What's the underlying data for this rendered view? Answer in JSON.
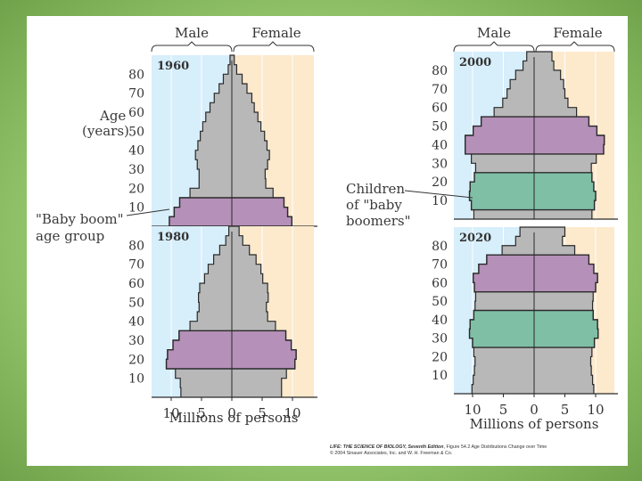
{
  "chart_data": [
    {
      "type": "bar",
      "orientation": "horizontal",
      "title": "1960",
      "age_groups": [
        "0-4",
        "5-9",
        "10-14",
        "15-19",
        "20-24",
        "25-29",
        "30-34",
        "35-39",
        "40-44",
        "45-49",
        "50-54",
        "55-59",
        "60-64",
        "65-69",
        "70-74",
        "75-79",
        "80-84",
        "85+"
      ],
      "series": [
        {
          "name": "Male",
          "values": [
            10.3,
            9.5,
            8.6,
            6.9,
            5.4,
            5.4,
            5.7,
            6.0,
            5.6,
            5.2,
            4.8,
            4.3,
            3.6,
            2.9,
            2.1,
            1.4,
            0.6,
            0.3
          ]
        },
        {
          "name": "Female",
          "values": [
            9.9,
            9.2,
            8.6,
            6.8,
            5.6,
            5.5,
            5.9,
            6.2,
            5.8,
            5.4,
            4.8,
            4.3,
            3.7,
            3.3,
            2.5,
            1.7,
            0.8,
            0.4
          ]
        }
      ],
      "highlight": {
        "label": "\"Baby boom\" age group",
        "ages": [
          0,
          14
        ]
      }
    },
    {
      "type": "bar",
      "orientation": "horizontal",
      "title": "1980",
      "age_groups": [
        "0-4",
        "5-9",
        "10-14",
        "15-19",
        "20-24",
        "25-29",
        "30-34",
        "35-39",
        "40-44",
        "45-49",
        "50-54",
        "55-59",
        "60-64",
        "65-69",
        "70-74",
        "75-79",
        "80-84",
        "85+"
      ],
      "series": [
        {
          "name": "Male",
          "values": [
            8.4,
            8.5,
            9.3,
            10.8,
            10.6,
            9.7,
            8.7,
            6.9,
            5.7,
            5.4,
            5.5,
            5.3,
            4.5,
            3.9,
            3.0,
            2.0,
            1.0,
            0.5
          ]
        },
        {
          "name": "Female",
          "values": [
            8.2,
            8.2,
            9.0,
            10.4,
            10.6,
            9.8,
            8.9,
            7.2,
            5.9,
            5.7,
            6.0,
            5.9,
            5.1,
            4.8,
            4.0,
            2.9,
            1.8,
            1.2
          ]
        }
      ],
      "highlight": {
        "label": "\"Baby boom\" age group",
        "ages": [
          15,
          34
        ]
      }
    },
    {
      "type": "bar",
      "orientation": "horizontal",
      "title": "2000",
      "age_groups": [
        "0-4",
        "5-9",
        "10-14",
        "15-19",
        "20-24",
        "25-29",
        "30-34",
        "35-39",
        "40-44",
        "45-49",
        "50-54",
        "55-59",
        "60-64",
        "65-69",
        "70-74",
        "75-79",
        "80-84",
        "85+"
      ],
      "series": [
        {
          "name": "Male",
          "values": [
            9.8,
            10.2,
            10.5,
            10.4,
            9.7,
            9.5,
            10.2,
            11.2,
            11.2,
            9.9,
            8.6,
            6.5,
            5.1,
            4.4,
            3.9,
            3.0,
            1.8,
            1.2
          ]
        },
        {
          "name": "Female",
          "values": [
            9.4,
            9.8,
            10.0,
            9.7,
            9.4,
            9.3,
            10.1,
            11.3,
            11.4,
            10.2,
            8.9,
            6.9,
            5.5,
            5.0,
            4.8,
            4.3,
            3.2,
            2.9
          ]
        }
      ],
      "highlight": [
        {
          "label": "Children of \"baby boomers\"",
          "ages": [
            5,
            24
          ]
        },
        {
          "label": "Baby boomers",
          "ages": [
            35,
            54
          ]
        }
      ]
    },
    {
      "type": "bar",
      "orientation": "horizontal",
      "title": "2020",
      "age_groups": [
        "0-4",
        "5-9",
        "10-14",
        "15-19",
        "20-24",
        "25-29",
        "30-34",
        "35-39",
        "40-44",
        "45-49",
        "50-54",
        "55-59",
        "60-64",
        "65-69",
        "70-74",
        "75-79",
        "80-84",
        "85+"
      ],
      "series": [
        {
          "name": "Male",
          "values": [
            10.1,
            9.9,
            9.7,
            9.6,
            9.8,
            10.0,
            10.5,
            10.4,
            9.8,
            9.6,
            9.5,
            9.7,
            9.9,
            9.0,
            7.7,
            5.2,
            3.0,
            2.3
          ]
        },
        {
          "name": "Female",
          "values": [
            9.7,
            9.5,
            9.3,
            9.2,
            9.4,
            9.8,
            10.4,
            10.3,
            9.6,
            9.5,
            9.6,
            10.0,
            10.3,
            9.7,
            8.9,
            6.6,
            4.6,
            5.0
          ]
        }
      ],
      "highlight": [
        {
          "label": "Children of \"baby boomers\"",
          "ages": [
            25,
            44
          ]
        },
        {
          "label": "Baby boomers",
          "ages": [
            55,
            74
          ]
        }
      ]
    }
  ],
  "axis": {
    "male_label": "Male",
    "female_label": "Female",
    "age_ticks": [
      "10",
      "20",
      "30",
      "40",
      "50",
      "60",
      "70",
      "80"
    ],
    "x_ticks": [
      "10",
      "5",
      "0",
      "5",
      "10"
    ],
    "xlabel": "Millions of persons",
    "ylabel_line1": "Age",
    "ylabel_line2": "(years)",
    "xlim": [
      -11,
      11
    ],
    "ylim": [
      0,
      90
    ]
  },
  "annotations": {
    "baby_boom_line1": "\"Baby boom\"",
    "baby_boom_line2": "age group",
    "children_line1": "Children",
    "children_line2": "of \"baby",
    "children_line3": "boomers\""
  },
  "credit": {
    "book": "LIFE: THE SCIENCE OF BIOLOGY, Seventh Edition",
    "figure": ", Figure 54.2  Age Distributions Change over Time",
    "copyright": "© 2004 Sinauer Associates, Inc. and W. H. Freeman & Co."
  },
  "colors": {
    "male_bg": "#d7eefb",
    "female_bg": "#fde9cc",
    "population": "#b8b8b8",
    "boomers": "#b590b8",
    "children": "#7fbfa5",
    "outline": "#2a2a2a"
  }
}
